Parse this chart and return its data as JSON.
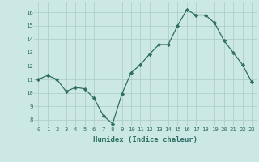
{
  "x": [
    0,
    1,
    2,
    3,
    4,
    5,
    6,
    7,
    8,
    9,
    10,
    11,
    12,
    13,
    14,
    15,
    16,
    17,
    18,
    19,
    20,
    21,
    22,
    23
  ],
  "y": [
    11.0,
    11.3,
    11.0,
    10.1,
    10.4,
    10.3,
    9.6,
    8.3,
    7.7,
    9.9,
    11.5,
    12.1,
    12.9,
    13.6,
    13.6,
    15.0,
    16.2,
    15.8,
    15.8,
    15.2,
    13.9,
    13.0,
    12.1,
    10.8
  ],
  "xlim": [
    -0.5,
    23.5
  ],
  "ylim": [
    7.5,
    16.8
  ],
  "yticks": [
    8,
    9,
    10,
    11,
    12,
    13,
    14,
    15,
    16
  ],
  "xticks": [
    0,
    1,
    2,
    3,
    4,
    5,
    6,
    7,
    8,
    9,
    10,
    11,
    12,
    13,
    14,
    15,
    16,
    17,
    18,
    19,
    20,
    21,
    22,
    23
  ],
  "xlabel": "Humidex (Indice chaleur)",
  "line_color": "#2e6e64",
  "marker": "D",
  "marker_size": 2.2,
  "bg_color": "#cce8e5",
  "grid_color": "#b0cfcc",
  "xlabel_fontsize": 6.5,
  "tick_fontsize": 5.2
}
